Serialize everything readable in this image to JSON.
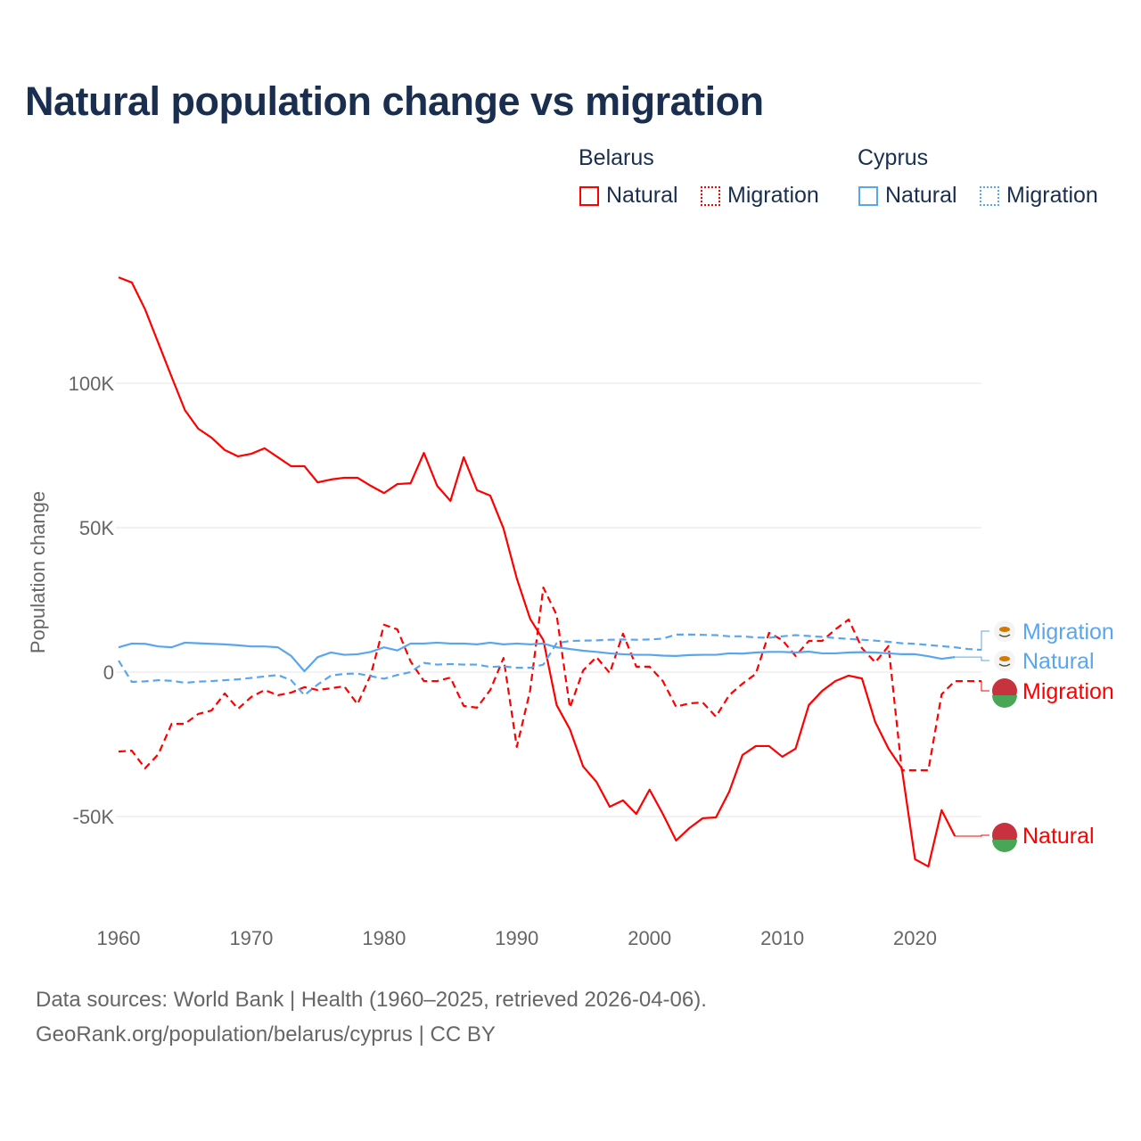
{
  "chart_data": {
    "type": "line",
    "title": "Natural population change vs migration",
    "ylabel": "Population change",
    "xlabel": "",
    "xlim": [
      1960,
      2025
    ],
    "ylim": [
      -80000,
      140000
    ],
    "x_ticks": [
      1960,
      1970,
      1980,
      1990,
      2000,
      2010,
      2020
    ],
    "x_tick_labels": [
      "1960",
      "1970",
      "1980",
      "1990",
      "2000",
      "2010",
      "2020"
    ],
    "y_ticks": [
      -50000,
      0,
      50000,
      100000
    ],
    "y_tick_labels": [
      "-50K",
      "0",
      "50K",
      "100K"
    ],
    "grid": true,
    "legend": {
      "placement": "top-right",
      "groups": [
        {
          "name": "Belarus",
          "items": [
            "Natural",
            "Migration"
          ]
        },
        {
          "name": "Cyprus",
          "items": [
            "Natural",
            "Migration"
          ]
        }
      ]
    },
    "series": [
      {
        "name": "Belarus Natural",
        "country": "Belarus",
        "kind": "Natural",
        "color": "#ff0000",
        "dash": false,
        "start_year": 1960,
        "end_label": "Natural",
        "values": [
          136700,
          134900,
          125600,
          113900,
          102200,
          90700,
          84300,
          81200,
          76900,
          74700,
          75600,
          77500,
          74400,
          71300,
          71300,
          65700,
          66700,
          67300,
          67300,
          64500,
          62000,
          65100,
          65400,
          75900,
          64500,
          59300,
          74400,
          63000,
          61100,
          49700,
          32400,
          18500,
          11100,
          -11400,
          -19800,
          -32700,
          -38000,
          -46600,
          -44400,
          -49100,
          -40700,
          -49100,
          -58300,
          -54000,
          -50600,
          -50300,
          -41400,
          -28700,
          -25600,
          -25600,
          -29300,
          -26500,
          -11400,
          -6500,
          -3100,
          -1200,
          -2200,
          -17300,
          -26500,
          -33300,
          -64800,
          -67300,
          -47800,
          -56800
        ]
      },
      {
        "name": "Belarus Migration",
        "country": "Belarus",
        "kind": "Migration",
        "color": "#ff0000",
        "dash": true,
        "start_year": 1960,
        "end_label": "Migration",
        "values": [
          -27500,
          -27200,
          -33300,
          -28400,
          -17900,
          -17900,
          -14500,
          -13300,
          -7400,
          -12700,
          -8600,
          -6200,
          -8000,
          -7100,
          -5200,
          -6200,
          -5600,
          -4900,
          -11100,
          -900,
          16400,
          14800,
          3700,
          -3100,
          -3100,
          -1900,
          -11700,
          -12300,
          -6200,
          4900,
          -25900,
          -6500,
          29300,
          19800,
          -12300,
          600,
          5200,
          -300,
          13300,
          1900,
          1900,
          -3100,
          -12000,
          -10800,
          -10500,
          -15400,
          -8000,
          -4000,
          -600,
          13600,
          11100,
          5600,
          10800,
          10800,
          14800,
          18200,
          8300,
          3400,
          9000,
          -34000,
          -34000,
          -34000,
          -7700,
          -3100,
          -3100,
          -3100
        ]
      },
      {
        "name": "Cyprus Natural",
        "country": "Cyprus",
        "kind": "Natural",
        "color": "#5aa6ee",
        "dash": false,
        "start_year": 1960,
        "end_label": "Natural",
        "values": [
          8600,
          9900,
          9800,
          8900,
          8600,
          10200,
          10000,
          9800,
          9600,
          9300,
          8900,
          8900,
          8600,
          5600,
          300,
          5200,
          6800,
          6000,
          6200,
          7000,
          8600,
          7500,
          9900,
          9900,
          10200,
          9900,
          9900,
          9600,
          10200,
          9600,
          9900,
          9600,
          9900,
          8600,
          8000,
          7400,
          7000,
          6500,
          6200,
          6000,
          6000,
          5700,
          5600,
          5900,
          6000,
          6000,
          6500,
          6400,
          6800,
          7000,
          7000,
          6800,
          7100,
          6500,
          6500,
          6800,
          6900,
          6800,
          6500,
          6200,
          6200,
          5500,
          4600,
          5200
        ]
      },
      {
        "name": "Cyprus Migration",
        "country": "Cyprus",
        "kind": "Migration",
        "color": "#5aa6ee",
        "dash": true,
        "start_year": 1960,
        "end_label": "Migration",
        "values": [
          4000,
          -3400,
          -3200,
          -2800,
          -3000,
          -3700,
          -3300,
          -3100,
          -2800,
          -2500,
          -2000,
          -1500,
          -1000,
          -2800,
          -8000,
          -4300,
          -1200,
          -600,
          -500,
          -1400,
          -2300,
          -1000,
          0,
          3200,
          2600,
          2800,
          2600,
          2600,
          1800,
          2000,
          1500,
          1500,
          2600,
          10000,
          10800,
          10900,
          11000,
          11200,
          11300,
          11200,
          11300,
          11600,
          13000,
          13000,
          12900,
          12800,
          12400,
          12400,
          12000,
          11900,
          12400,
          12800,
          12500,
          12200,
          11800,
          11500,
          11200,
          10900,
          10500,
          10000,
          9800,
          9400,
          9000,
          8600,
          8000,
          7700
        ]
      }
    ]
  },
  "colors": {
    "belarus": "#ff0000",
    "cyprus": "#5aa6ee",
    "title": "#1a2e4f"
  },
  "footer": {
    "line1": "Data sources: World Bank | Health (1960–2025, retrieved 2026-04-06).",
    "line2": "GeoRank.org/population/belarus/cyprus | CC BY"
  }
}
